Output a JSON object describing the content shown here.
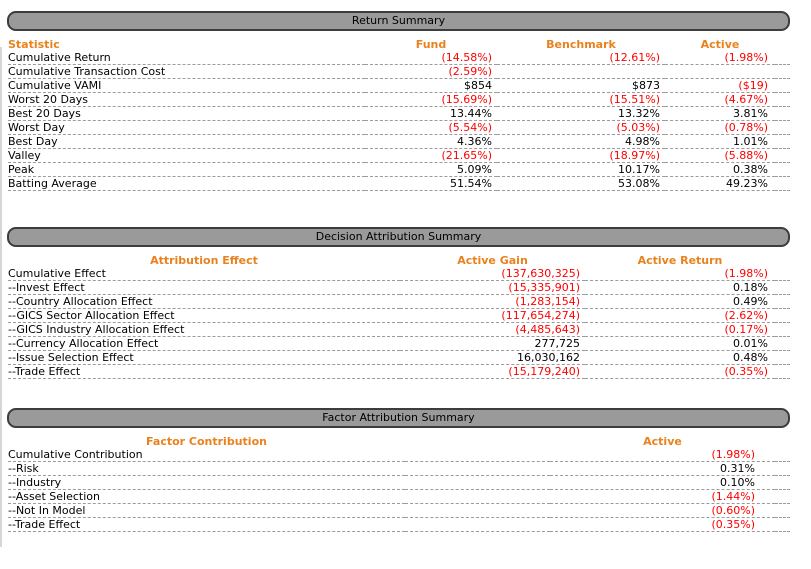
{
  "colors": {
    "header_accent_orange": "#e8821e",
    "negative_value_red": "#ff0000",
    "positive_value_black": "#000000",
    "section_bar_gray": "#9a9a9a",
    "section_bar_border": "#3d3d3d",
    "row_divider_gray": "#9b9b9b"
  },
  "sections": [
    {
      "title": "Return Summary",
      "columns": [
        "Statistic",
        "Fund",
        "Benchmark",
        "Active"
      ],
      "rows": [
        {
          "label": "Cumulative Return",
          "values": [
            "(14.58%)",
            "(12.61%)",
            "(1.98%)"
          ]
        },
        {
          "label": "Cumulative Transaction Cost",
          "values": [
            "(2.59%)",
            "",
            ""
          ]
        },
        {
          "label": "Cumulative VAMI",
          "values": [
            "$854",
            "$873",
            "($19)"
          ]
        },
        {
          "label": "Worst 20 Days",
          "values": [
            "(15.69%)",
            "(15.51%)",
            "(4.67%)"
          ]
        },
        {
          "label": "Best 20 Days",
          "values": [
            "13.44%",
            "13.32%",
            "3.81%"
          ]
        },
        {
          "label": "Worst Day",
          "values": [
            "(5.54%)",
            "(5.03%)",
            "(0.78%)"
          ]
        },
        {
          "label": "Best Day",
          "values": [
            "4.36%",
            "4.98%",
            "1.01%"
          ]
        },
        {
          "label": "Valley",
          "values": [
            "(21.65%)",
            "(18.97%)",
            "(5.88%)"
          ]
        },
        {
          "label": "Peak",
          "values": [
            "5.09%",
            "10.17%",
            "0.38%"
          ]
        },
        {
          "label": "Batting Average",
          "values": [
            "51.54%",
            "53.08%",
            "49.23%"
          ]
        }
      ]
    },
    {
      "title": "Decision Attribution Summary",
      "columns": [
        "Attribution Effect",
        "Active Gain",
        "Active Return"
      ],
      "rows": [
        {
          "label": "Cumulative Effect",
          "values": [
            "(137,630,325)",
            "(1.98%)"
          ]
        },
        {
          "label": "--Invest Effect",
          "values": [
            "(15,335,901)",
            "0.18%"
          ]
        },
        {
          "label": "--Country Allocation Effect",
          "values": [
            "(1,283,154)",
            "0.49%"
          ]
        },
        {
          "label": "--GICS Sector Allocation Effect",
          "values": [
            "(117,654,274)",
            "(2.62%)"
          ]
        },
        {
          "label": "--GICS Industry Allocation Effect",
          "values": [
            "(4,485,643)",
            "(0.17%)"
          ]
        },
        {
          "label": "--Currency Allocation Effect",
          "values": [
            "277,725",
            "0.01%"
          ]
        },
        {
          "label": "--Issue Selection Effect",
          "values": [
            "16,030,162",
            "0.48%"
          ]
        },
        {
          "label": "--Trade Effect",
          "values": [
            "(15,179,240)",
            "(0.35%)"
          ]
        }
      ]
    },
    {
      "title": "Factor Attribution Summary",
      "columns": [
        "Factor Contribution",
        "Active"
      ],
      "rows": [
        {
          "label": "Cumulative Contribution",
          "values": [
            "(1.98%)"
          ]
        },
        {
          "label": "--Risk",
          "values": [
            "0.31%"
          ]
        },
        {
          "label": "--Industry",
          "values": [
            "0.10%"
          ]
        },
        {
          "label": "--Asset Selection",
          "values": [
            "(1.44%)"
          ]
        },
        {
          "label": "--Not In Model",
          "values": [
            "(0.60%)"
          ]
        },
        {
          "label": "--Trade Effect",
          "values": [
            "(0.35%)"
          ]
        }
      ]
    }
  ]
}
